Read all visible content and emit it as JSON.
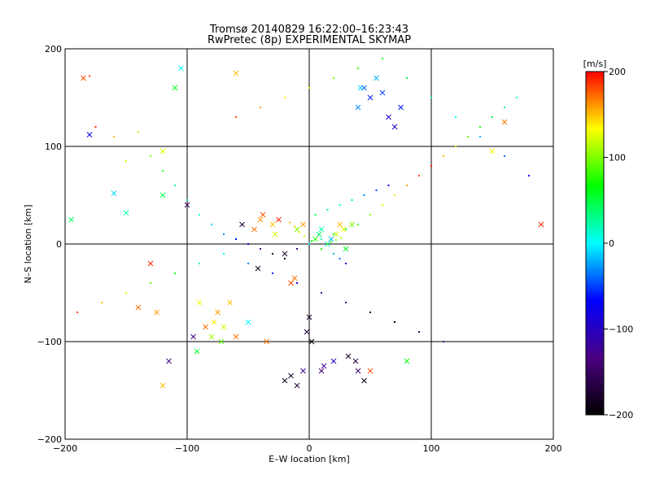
{
  "chart_data": {
    "type": "scatter",
    "title": "Tromsø 20140829 16:22:00–16:23:43",
    "subtitle": "RwPretec (8p) EXPERIMENTAL SKYMAP",
    "xlabel": "E–W location [km]",
    "ylabel": "N–S location [km]",
    "xlim": [
      -200,
      200
    ],
    "ylim": [
      -200,
      200
    ],
    "xticks": [
      -200,
      -100,
      0,
      100,
      200
    ],
    "yticks": [
      -200,
      -100,
      0,
      100,
      200
    ],
    "xtick_labels": [
      "−200",
      "−100",
      "0",
      "100",
      "200"
    ],
    "ytick_labels": [
      "−200",
      "−100",
      "0",
      "100",
      "200"
    ],
    "grid": true,
    "colorbar": {
      "label": "[m/s]",
      "min": -200,
      "max": 200,
      "ticks": [
        200,
        100,
        0,
        -100,
        -200
      ],
      "tick_labels": [
        "200",
        "100",
        "0",
        "−100",
        "−200"
      ],
      "colors": [
        "#000000",
        "#4b0082",
        "#0000ff",
        "#00ffff",
        "#00ff00",
        "#ffff00",
        "#ff0000"
      ]
    },
    "series": [
      {
        "marker": "cross",
        "points": [
          [
            -195,
            25,
            40
          ],
          [
            -185,
            170,
            180
          ],
          [
            -180,
            112,
            -80
          ],
          [
            -160,
            52,
            -10
          ],
          [
            -150,
            32,
            20
          ],
          [
            -140,
            -65,
            170
          ],
          [
            -130,
            -20,
            190
          ],
          [
            -125,
            -70,
            160
          ],
          [
            -120,
            -145,
            150
          ],
          [
            -115,
            -120,
            -140
          ],
          [
            -110,
            160,
            60
          ],
          [
            -105,
            180,
            0
          ],
          [
            -100,
            40,
            -150
          ],
          [
            -95,
            -95,
            -130
          ],
          [
            -92,
            -110,
            60
          ],
          [
            -90,
            -60,
            130
          ],
          [
            -85,
            -85,
            170
          ],
          [
            -80,
            -95,
            110
          ],
          [
            -78,
            -80,
            140
          ],
          [
            -75,
            -70,
            160
          ],
          [
            -72,
            -100,
            90
          ],
          [
            -70,
            -85,
            120
          ],
          [
            -65,
            -60,
            150
          ],
          [
            -60,
            -95,
            170
          ],
          [
            -55,
            20,
            -170
          ],
          [
            -50,
            -80,
            0
          ],
          [
            -45,
            15,
            170
          ],
          [
            -42,
            -25,
            -190
          ],
          [
            -40,
            25,
            160
          ],
          [
            -38,
            30,
            180
          ],
          [
            -35,
            -100,
            170
          ],
          [
            -30,
            20,
            150
          ],
          [
            -28,
            10,
            120
          ],
          [
            -25,
            25,
            190
          ],
          [
            -20,
            -10,
            -180
          ],
          [
            -15,
            -40,
            180
          ],
          [
            -12,
            -35,
            170
          ],
          [
            -10,
            15,
            100
          ],
          [
            -5,
            20,
            160
          ],
          [
            -2,
            -90,
            -170
          ],
          [
            0,
            -75,
            -180
          ],
          [
            2,
            -100,
            -200
          ],
          [
            5,
            5,
            80
          ],
          [
            8,
            10,
            40
          ],
          [
            10,
            15,
            20
          ],
          [
            12,
            -125,
            -120
          ],
          [
            15,
            0,
            10
          ],
          [
            18,
            5,
            -20
          ],
          [
            20,
            -120,
            -100
          ],
          [
            22,
            10,
            120
          ],
          [
            25,
            20,
            150
          ],
          [
            28,
            15,
            130
          ],
          [
            30,
            -5,
            60
          ],
          [
            32,
            -115,
            -180
          ],
          [
            35,
            20,
            100
          ],
          [
            38,
            -120,
            -170
          ],
          [
            40,
            140,
            -30
          ],
          [
            42,
            160,
            -10
          ],
          [
            45,
            160,
            -40
          ],
          [
            50,
            150,
            -60
          ],
          [
            55,
            170,
            -20
          ],
          [
            60,
            155,
            -50
          ],
          [
            65,
            130,
            -90
          ],
          [
            70,
            120,
            -100
          ],
          [
            75,
            140,
            -60
          ],
          [
            -20,
            -140,
            -190
          ],
          [
            -15,
            -135,
            -180
          ],
          [
            -10,
            -145,
            -170
          ],
          [
            -5,
            -130,
            -120
          ],
          [
            10,
            -130,
            -140
          ],
          [
            40,
            -130,
            -150
          ],
          [
            45,
            -140,
            -190
          ],
          [
            50,
            -130,
            180
          ],
          [
            80,
            -120,
            60
          ],
          [
            150,
            95,
            130
          ],
          [
            160,
            125,
            170
          ],
          [
            190,
            20,
            190
          ],
          [
            -60,
            175,
            150
          ],
          [
            -120,
            95,
            120
          ],
          [
            -120,
            50,
            50
          ]
        ]
      },
      {
        "marker": "dot",
        "points": [
          [
            -180,
            172,
            180
          ],
          [
            -175,
            120,
            190
          ],
          [
            -160,
            110,
            150
          ],
          [
            -150,
            85,
            120
          ],
          [
            -140,
            115,
            110
          ],
          [
            -130,
            90,
            100
          ],
          [
            -120,
            75,
            60
          ],
          [
            -110,
            60,
            30
          ],
          [
            -100,
            45,
            20
          ],
          [
            -90,
            30,
            10
          ],
          [
            -80,
            20,
            -10
          ],
          [
            -70,
            10,
            -30
          ],
          [
            -60,
            5,
            -60
          ],
          [
            -50,
            0,
            -90
          ],
          [
            -40,
            -5,
            -130
          ],
          [
            -30,
            -10,
            -170
          ],
          [
            -20,
            -15,
            -190
          ],
          [
            -10,
            -5,
            -150
          ],
          [
            0,
            0,
            0
          ],
          [
            10,
            5,
            20
          ],
          [
            20,
            10,
            40
          ],
          [
            30,
            15,
            60
          ],
          [
            40,
            20,
            80
          ],
          [
            50,
            30,
            100
          ],
          [
            60,
            40,
            120
          ],
          [
            70,
            50,
            140
          ],
          [
            80,
            60,
            160
          ],
          [
            90,
            70,
            180
          ],
          [
            100,
            80,
            190
          ],
          [
            110,
            90,
            150
          ],
          [
            120,
            100,
            110
          ],
          [
            130,
            110,
            90
          ],
          [
            140,
            120,
            70
          ],
          [
            150,
            130,
            50
          ],
          [
            160,
            140,
            30
          ],
          [
            170,
            150,
            10
          ],
          [
            -190,
            -70,
            180
          ],
          [
            -170,
            -60,
            150
          ],
          [
            -150,
            -50,
            120
          ],
          [
            -130,
            -40,
            90
          ],
          [
            -110,
            -30,
            60
          ],
          [
            -90,
            -20,
            30
          ],
          [
            -70,
            -10,
            0
          ],
          [
            -50,
            -20,
            -30
          ],
          [
            -30,
            -30,
            -60
          ],
          [
            -10,
            -40,
            -90
          ],
          [
            10,
            -50,
            -120
          ],
          [
            30,
            -60,
            -150
          ],
          [
            50,
            -70,
            -180
          ],
          [
            70,
            -80,
            -190
          ],
          [
            90,
            -90,
            -160
          ],
          [
            110,
            -100,
            -130
          ],
          [
            -60,
            130,
            180
          ],
          [
            -40,
            140,
            160
          ],
          [
            -20,
            150,
            140
          ],
          [
            0,
            160,
            120
          ],
          [
            20,
            170,
            100
          ],
          [
            40,
            180,
            80
          ],
          [
            60,
            190,
            60
          ],
          [
            80,
            170,
            40
          ],
          [
            100,
            150,
            20
          ],
          [
            120,
            130,
            0
          ],
          [
            140,
            110,
            -20
          ],
          [
            160,
            90,
            -40
          ],
          [
            180,
            70,
            -60
          ],
          [
            5,
            30,
            50
          ],
          [
            15,
            35,
            30
          ],
          [
            25,
            40,
            10
          ],
          [
            35,
            45,
            -10
          ],
          [
            45,
            50,
            -30
          ],
          [
            55,
            55,
            -50
          ],
          [
            65,
            60,
            -70
          ],
          [
            20,
            -10,
            -20
          ],
          [
            25,
            -15,
            -40
          ],
          [
            30,
            -20,
            -60
          ],
          [
            15,
            0,
            80
          ],
          [
            18,
            2,
            90
          ],
          [
            22,
            4,
            100
          ],
          [
            26,
            6,
            110
          ],
          [
            10,
            -5,
            70
          ],
          [
            -8,
            12,
            130
          ],
          [
            -12,
            18,
            140
          ],
          [
            -16,
            22,
            150
          ],
          [
            -4,
            8,
            120
          ],
          [
            2,
            3,
            60
          ]
        ]
      }
    ]
  }
}
